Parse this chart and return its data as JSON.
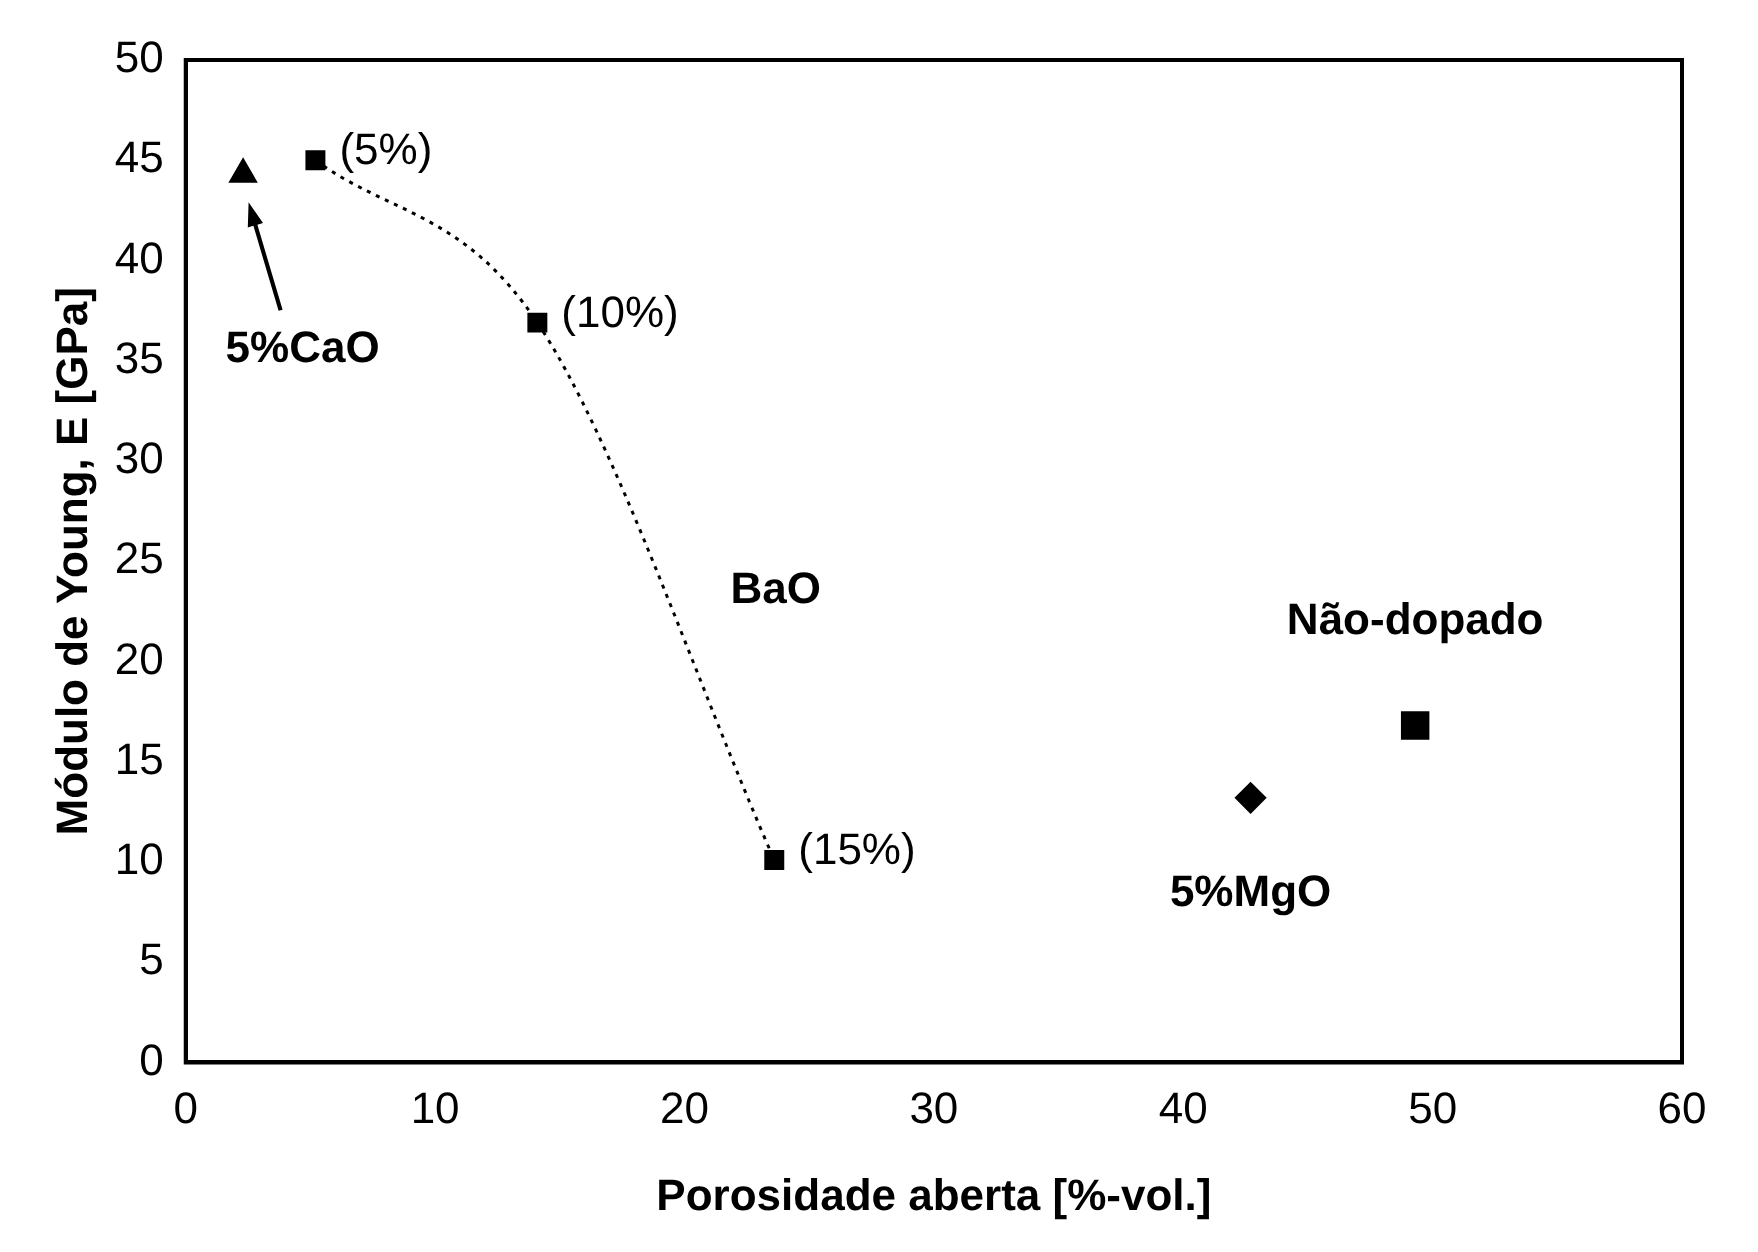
{
  "chart_data": {
    "type": "scatter",
    "xlabel": "Porosidade aberta [%-vol.]",
    "ylabel": "Módulo de Young, E [GPa]",
    "xlim": [
      0,
      60
    ],
    "xticks": [
      0,
      10,
      20,
      30,
      40,
      50,
      60
    ],
    "ylim": [
      0,
      50
    ],
    "yticks": [
      0,
      5,
      10,
      15,
      20,
      25,
      30,
      35,
      40,
      45,
      50
    ],
    "grid": false,
    "legend": false,
    "series": [
      {
        "type": "scatter",
        "marker": "triangle",
        "color": "#000000",
        "x": [
          2.3
        ],
        "values": [
          44.3
        ]
      },
      {
        "name": "BaO",
        "type": "line",
        "marker": "square",
        "line_style": "dotted",
        "color": "#000000",
        "x": [
          5.2,
          14.1,
          23.6
        ],
        "values": [
          45.0,
          36.9,
          10.1
        ]
      },
      {
        "name": "5%MgO",
        "type": "scatter",
        "marker": "diamond",
        "color": "#000000",
        "x": [
          42.7
        ],
        "values": [
          13.2
        ]
      },
      {
        "name": "Não-dopado",
        "type": "scatter",
        "marker": "square",
        "color": "#000000",
        "x": [
          49.3
        ],
        "values": [
          16.8
        ]
      }
    ],
    "annotations": [
      {
        "text": "(5%)",
        "x": 5.2,
        "y": 45.0
      },
      {
        "text": "(10%)",
        "x": 14.1,
        "y": 36.9
      },
      {
        "text": "(15%)",
        "x": 23.6,
        "y": 10.1
      },
      "5%CaO"
    ]
  }
}
